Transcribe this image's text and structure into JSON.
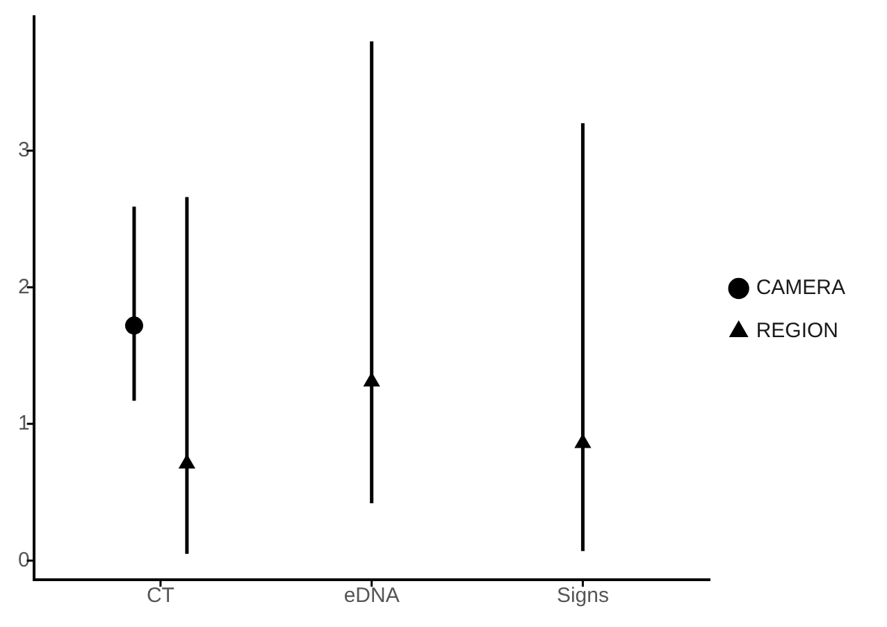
{
  "chart_data": {
    "type": "scatter",
    "categories": [
      "CT",
      "eDNA",
      "Signs"
    ],
    "series": [
      {
        "name": "CAMERA",
        "color": "#000000",
        "marker": "circle",
        "values": [
          1.72,
          null,
          null
        ],
        "errors": [
          [
            1.17,
            2.59
          ],
          null,
          null
        ]
      },
      {
        "name": "REGION",
        "color": "#000000",
        "marker": "triangle",
        "values": [
          0.71,
          1.31,
          0.86
        ],
        "errors": [
          [
            0.05,
            2.66
          ],
          [
            0.42,
            3.8
          ],
          [
            0.07,
            3.2
          ]
        ]
      }
    ],
    "ylim": [
      -0.14,
      3.98
    ],
    "yticks": [
      0,
      1,
      2,
      3
    ],
    "grid": false,
    "legend": "right"
  }
}
